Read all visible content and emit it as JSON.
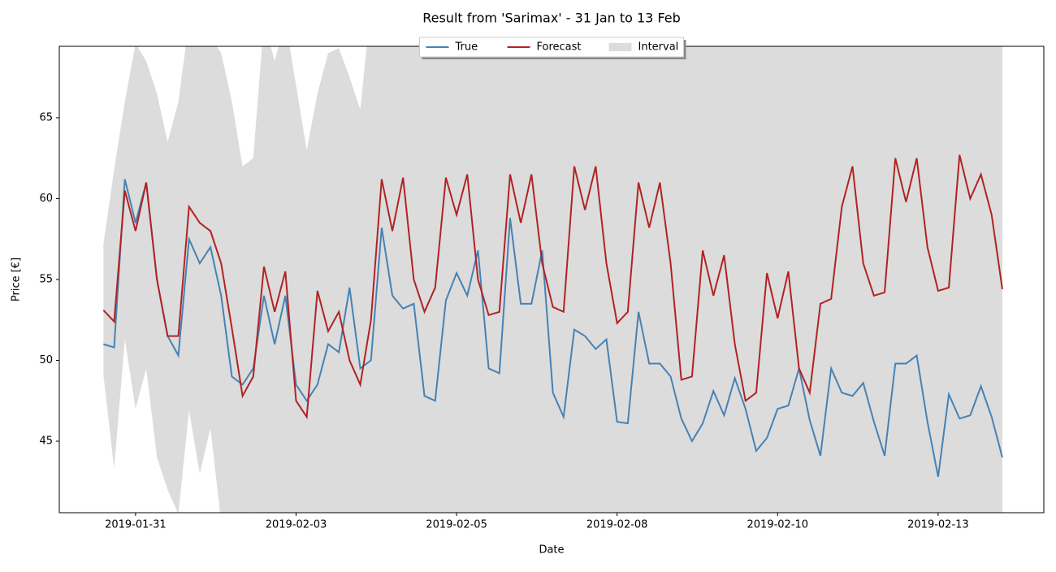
{
  "chart_data": {
    "type": "line",
    "title": "Result from 'Sarimax' - 31 Jan to 13 Feb",
    "xlabel": "Date",
    "ylabel": "Price [€]",
    "x_start": -12,
    "x_step": 4,
    "xlim": [
      -28.5,
      339.5
    ],
    "xticks": [
      {
        "value": 0,
        "label": "2019-01-31"
      },
      {
        "value": 60,
        "label": "2019-02-03"
      },
      {
        "value": 120,
        "label": "2019-02-05"
      },
      {
        "value": 180,
        "label": "2019-02-08"
      },
      {
        "value": 240,
        "label": "2019-02-10"
      },
      {
        "value": 300,
        "label": "2019-02-13"
      }
    ],
    "ylim": [
      40.58,
      69.42
    ],
    "yticks": [
      45,
      50,
      55,
      60,
      65
    ],
    "legend": "top-center",
    "series": [
      {
        "name": "True",
        "color": "#4682b4",
        "values": [
          51.0,
          50.8,
          61.2,
          58.5,
          61,
          55,
          51.5,
          50.3,
          57.5,
          56,
          57,
          54,
          49,
          48.5,
          49.5,
          54,
          51,
          54,
          48.5,
          47.5,
          48.5,
          51,
          50.5,
          54.5,
          49.5,
          50,
          58.2,
          54,
          53.2,
          53.5,
          47.8,
          47.5,
          53.7,
          55.4,
          54,
          56.8,
          49.5,
          49.2,
          58.8,
          53.5,
          53.5,
          56.8,
          48,
          46.5,
          51.9,
          51.5,
          50.7,
          51.3,
          46.2,
          46.1,
          53,
          49.8,
          49.8,
          49,
          46.4,
          45,
          46.1,
          48.1,
          46.6,
          48.9,
          47,
          44.4,
          45.2,
          47,
          47.2,
          49.5,
          46.3,
          44.1,
          49.5,
          48,
          47.8,
          48.6,
          46.2,
          44.1,
          49.8,
          49.8,
          50.3,
          46.2,
          42.8,
          47.9,
          46.4,
          46.6,
          48.4,
          46.5,
          44
        ]
      },
      {
        "name": "Forecast",
        "color": "#b22222",
        "values": [
          53.1,
          52.4,
          60.5,
          58,
          61,
          55,
          51.5,
          51.5,
          59.5,
          58.5,
          58,
          56,
          52,
          47.8,
          49,
          55.8,
          53,
          55.5,
          47.5,
          46.5,
          54.3,
          51.8,
          53,
          50,
          48.5,
          52.5,
          61.2,
          58,
          61.3,
          55,
          53,
          54.5,
          61.3,
          59,
          61.5,
          55,
          52.8,
          53,
          61.5,
          58.5,
          61.5,
          56,
          53.3,
          53,
          62,
          59.3,
          62,
          56,
          52.3,
          53,
          61,
          58.2,
          61,
          56,
          48.8,
          49,
          56.8,
          54,
          56.5,
          51,
          47.5,
          48,
          55.4,
          52.6,
          55.5,
          49.5,
          48,
          53.5,
          53.8,
          59.5,
          62,
          56,
          54,
          54.2,
          62.5,
          59.8,
          62.5,
          57,
          54.3,
          54.5,
          62.7,
          60,
          61.5,
          59,
          54.4
        ]
      }
    ],
    "interval": {
      "name": "Interval",
      "color": "#dcdcdc",
      "upper": [
        57.2,
        61.8,
        66,
        69.6,
        68.5,
        66.5,
        63.5,
        66,
        71,
        72,
        70,
        69,
        66,
        62,
        62.5,
        71,
        68.5,
        71,
        67,
        63,
        66.5,
        69,
        69.3,
        67.5,
        65.5,
        72,
        72,
        72,
        72,
        72,
        72,
        72,
        72,
        72,
        72,
        72,
        72,
        72,
        72,
        72,
        72,
        72,
        72,
        72,
        72,
        72,
        72,
        72,
        72,
        72,
        72,
        72,
        72,
        72,
        72,
        72,
        72,
        72,
        72,
        72,
        72,
        72,
        72,
        72,
        72,
        72,
        72,
        72,
        72,
        72,
        72,
        72,
        72,
        72,
        72,
        72,
        72,
        72,
        72,
        72,
        72,
        72,
        72,
        72,
        72
      ],
      "lower": [
        49.1,
        43.3,
        51.3,
        47,
        49.5,
        44,
        42,
        40.5,
        46.9,
        43,
        45.8,
        40,
        39,
        39,
        40.7,
        39,
        38,
        38,
        38,
        38,
        38,
        38,
        38,
        38,
        38,
        38,
        38,
        38,
        38,
        38,
        38,
        38,
        38,
        38,
        38,
        38,
        38,
        38,
        38,
        38,
        38,
        38,
        38,
        38,
        38,
        38,
        38,
        38,
        38,
        38,
        38,
        38,
        38,
        38,
        38,
        38,
        38,
        38,
        38,
        38,
        38,
        38,
        38,
        38,
        38,
        38,
        38,
        38,
        38,
        38,
        38,
        38,
        38,
        38,
        38,
        38,
        38,
        38,
        38,
        38,
        38,
        38,
        38,
        38,
        38
      ]
    }
  }
}
